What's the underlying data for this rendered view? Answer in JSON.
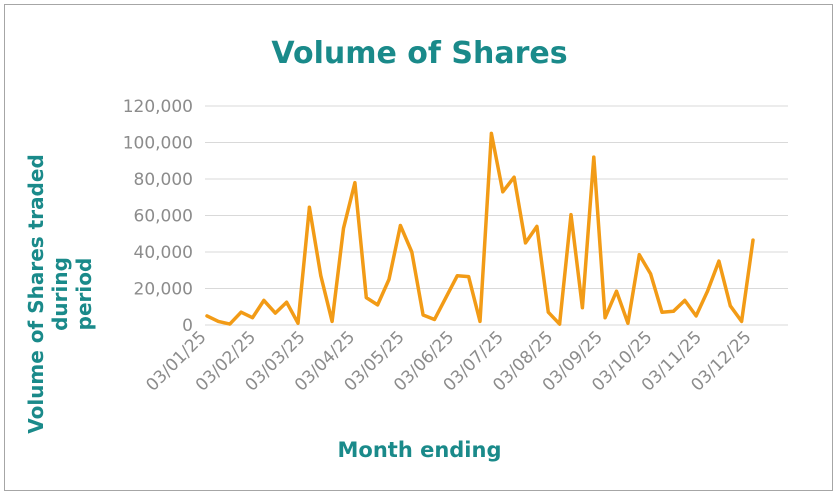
{
  "chart_data": {
    "type": "line",
    "title": "Volume of Shares",
    "xlabel": "Month ending",
    "ylabel_line1": "Volume of Shares traded during",
    "ylabel_line2": "period",
    "ylim": [
      0,
      120000
    ],
    "yticks": [
      0,
      20000,
      40000,
      60000,
      80000,
      100000,
      120000
    ],
    "ytick_labels": [
      "0",
      "20,000",
      "40,000",
      "60,000",
      "80,000",
      "100,000",
      "120,000"
    ],
    "xtick_labels": [
      "03/01/25",
      "03/02/25",
      "03/03/25",
      "03/04/25",
      "03/05/25",
      "03/06/25",
      "03/07/25",
      "03/08/25",
      "03/09/25",
      "03/10/25",
      "03/11/25",
      "03/12/25"
    ],
    "grid": true,
    "line_color": "#f29b16",
    "series": [
      {
        "values": [
          5000,
          2000,
          500,
          7000,
          4000,
          13500,
          6500,
          12500,
          1000,
          64500,
          27000,
          2000,
          53000,
          78000,
          15000,
          11000,
          25000,
          54500,
          40000,
          5500,
          3000,
          15000,
          27000,
          26500,
          2000,
          105000,
          73000,
          81000,
          45000,
          54000,
          7000,
          500,
          60500,
          9500,
          92000,
          4000,
          18500,
          1000,
          38500,
          28000,
          7000,
          7500,
          13500,
          5000,
          18500,
          35000,
          10500,
          2000,
          46500
        ]
      }
    ]
  }
}
